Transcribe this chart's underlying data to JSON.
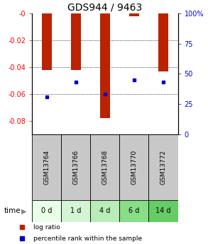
{
  "title": "GDS944 / 9463",
  "samples": [
    "GSM13764",
    "GSM13766",
    "GSM13768",
    "GSM13770",
    "GSM13772"
  ],
  "timepoints": [
    "0 d",
    "1 d",
    "4 d",
    "6 d",
    "14 d"
  ],
  "log_ratio": [
    -0.042,
    -0.042,
    -0.078,
    -0.002,
    -0.043
  ],
  "percentile": [
    31,
    43,
    33,
    45,
    43
  ],
  "ylim_left": [
    -0.09,
    0.0
  ],
  "ylim_right": [
    0,
    100
  ],
  "yticks_left": [
    0.0,
    -0.02,
    -0.04,
    -0.06,
    -0.08
  ],
  "yticks_left_labels": [
    "-0",
    "-0.02",
    "-0.04",
    "-0.06",
    "-0.08"
  ],
  "yticks_right": [
    0,
    25,
    50,
    75,
    100
  ],
  "yticks_right_labels": [
    "0",
    "25",
    "50",
    "75",
    "100%"
  ],
  "bar_color": "#bb2200",
  "dot_color": "#0000cc",
  "bar_width": 0.35,
  "bg_label_gray": "#c8c8c8",
  "green_colors": [
    "#e8ffe8",
    "#d4f5d4",
    "#b8edb8",
    "#88dd88",
    "#66cc66"
  ],
  "legend_bar_label": "log ratio",
  "legend_dot_label": "percentile rank within the sample",
  "time_label": "time",
  "title_fontsize": 10,
  "tick_fontsize": 7,
  "sample_fontsize": 6.5,
  "time_fontsize": 7,
  "legend_fontsize": 6.5
}
